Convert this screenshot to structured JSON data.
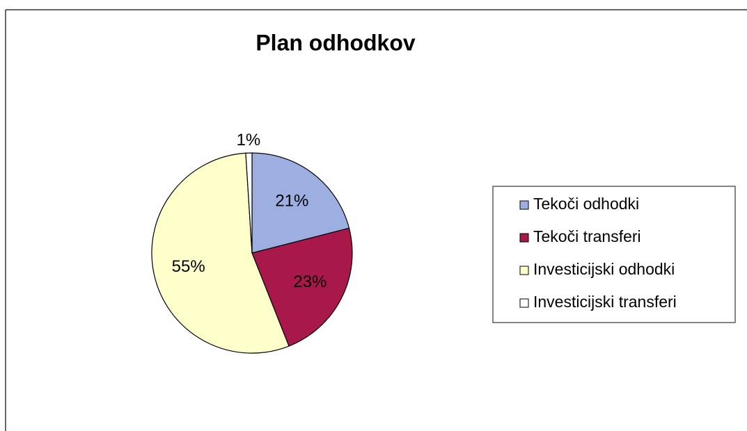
{
  "chart_data": {
    "type": "pie",
    "title": "Plan odhodkov",
    "categories": [
      "Tekoči odhodki",
      "Tekoči transferi",
      "Investicijski odhodki",
      "Investicijski transferi"
    ],
    "values": [
      21,
      23,
      55,
      1
    ],
    "value_labels": [
      "21%",
      "23%",
      "55%",
      "1%"
    ],
    "colors": [
      "#9dafe0",
      "#a8184a",
      "#ffffcc",
      "#ffffff"
    ],
    "legend": "right"
  }
}
